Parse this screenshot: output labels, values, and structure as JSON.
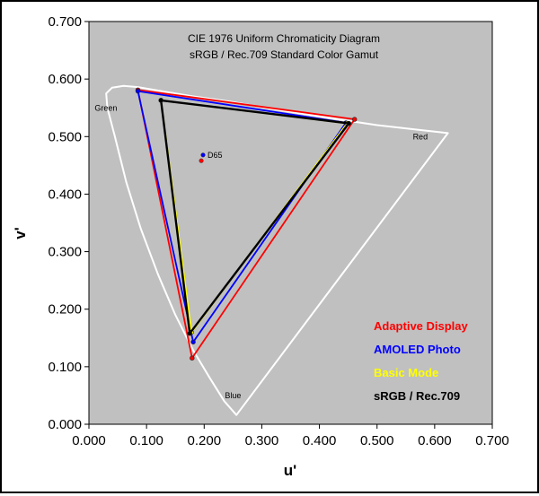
{
  "chart_data": {
    "type": "scatter",
    "title": "CIE 1976 Uniform Chromaticity Diagram",
    "subtitle": "sRGB / Rec.709 Standard Color Gamut",
    "xlabel": "u'",
    "ylabel": "v'",
    "xlim": [
      0.0,
      0.7
    ],
    "ylim": [
      0.0,
      0.7
    ],
    "xticks": [
      "0.000",
      "0.100",
      "0.200",
      "0.300",
      "0.400",
      "0.500",
      "0.600",
      "0.700"
    ],
    "yticks": [
      "0.000",
      "0.100",
      "0.200",
      "0.300",
      "0.400",
      "0.500",
      "0.600",
      "0.700"
    ],
    "grid": false,
    "legend_position": "bottom-right",
    "background_color": "#c0c0c0",
    "spectral_locus": {
      "color": "#ffffff",
      "labels": {
        "green": "Green",
        "red": "Red",
        "blue": "Blue"
      },
      "points": [
        [
          0.256,
          0.016
        ],
        [
          0.235,
          0.04
        ],
        [
          0.21,
          0.08
        ],
        [
          0.18,
          0.13
        ],
        [
          0.15,
          0.19
        ],
        [
          0.12,
          0.26
        ],
        [
          0.09,
          0.34
        ],
        [
          0.065,
          0.42
        ],
        [
          0.045,
          0.5
        ],
        [
          0.032,
          0.55
        ],
        [
          0.03,
          0.575
        ],
        [
          0.04,
          0.585
        ],
        [
          0.06,
          0.588
        ],
        [
          0.085,
          0.586
        ],
        [
          0.12,
          0.58
        ],
        [
          0.18,
          0.57
        ],
        [
          0.25,
          0.56
        ],
        [
          0.33,
          0.546
        ],
        [
          0.42,
          0.532
        ],
        [
          0.5,
          0.52
        ],
        [
          0.56,
          0.513
        ],
        [
          0.623,
          0.506
        ]
      ]
    },
    "series": [
      {
        "name": "Adaptive Display",
        "color": "#ff0000",
        "points": [
          [
            0.461,
            0.53
          ],
          [
            0.085,
            0.581
          ],
          [
            0.179,
            0.115
          ]
        ]
      },
      {
        "name": "AMOLED Photo",
        "color": "#0000ff",
        "points": [
          [
            0.446,
            0.524
          ],
          [
            0.085,
            0.579
          ],
          [
            0.181,
            0.143
          ]
        ]
      },
      {
        "name": "Basic Mode",
        "color": "#ffff00",
        "points": [
          [
            0.448,
            0.523
          ],
          [
            0.125,
            0.563
          ],
          [
            0.178,
            0.16
          ]
        ]
      },
      {
        "name": "sRGB / Rec.709",
        "color": "#000000",
        "points": [
          [
            0.451,
            0.523
          ],
          [
            0.125,
            0.563
          ],
          [
            0.175,
            0.158
          ]
        ]
      }
    ],
    "white_point": {
      "label": "D65",
      "points": [
        {
          "color": "#ff0000",
          "u": 0.195,
          "v": 0.458
        },
        {
          "color": "#0000ff",
          "u": 0.198,
          "v": 0.468
        }
      ]
    }
  }
}
